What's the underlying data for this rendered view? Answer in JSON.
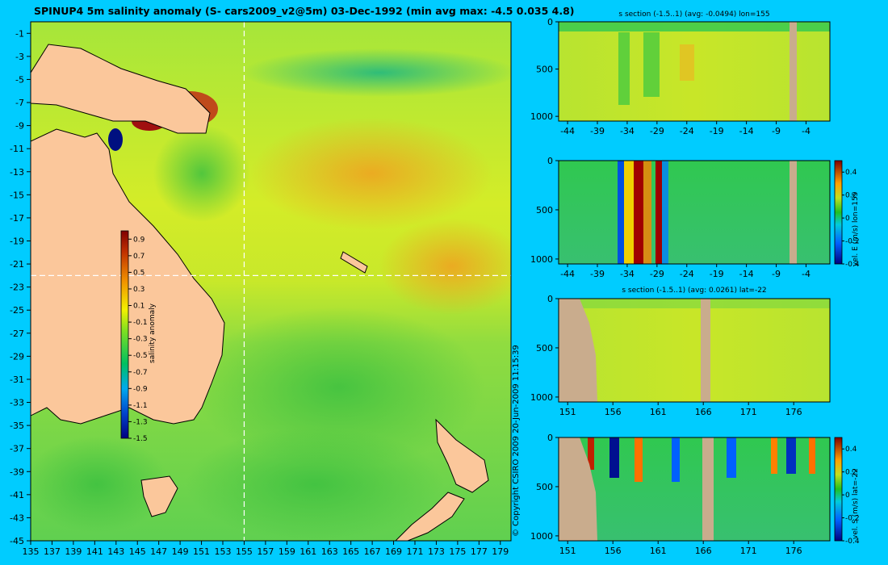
{
  "title": "SPINUP4 5m salinity anomaly  (S- cars2009_v2@5m) 03-Dec-1992 (min avg max: -4.5 0.035 4.8)",
  "copyright": "© Copyright CSIRO 2009   20-Jun-2009 11:15:39",
  "colors": {
    "background": "#00ccff",
    "land": "#fbc79b",
    "section_land": "#c9ac8d",
    "crosshair": "#ffffff"
  },
  "chart_data": [
    {
      "type": "heatmap",
      "id": "map",
      "title": "SPINUP4 5m salinity anomaly  (S- cars2009_v2@5m) 03-Dec-1992 (min avg max: -4.5 0.035 4.8)",
      "x_ticks": [
        "135",
        "137",
        "139",
        "141",
        "143",
        "145",
        "147",
        "149",
        "151",
        "153",
        "155",
        "157",
        "159",
        "161",
        "163",
        "165",
        "167",
        "169",
        "171",
        "173",
        "175",
        "177",
        "179"
      ],
      "y_ticks": [
        "-1",
        "-3",
        "-5",
        "-7",
        "-9",
        "-11",
        "-13",
        "-15",
        "-17",
        "-19",
        "-21",
        "-23",
        "-25",
        "-27",
        "-29",
        "-31",
        "-33",
        "-35",
        "-37",
        "-39",
        "-41",
        "-43",
        "-45"
      ],
      "xlim": [
        135,
        180
      ],
      "ylim": [
        -45,
        0
      ],
      "crosshair": {
        "lon": 155,
        "lat": -22
      },
      "colorbar": {
        "label": "salinity anomaly",
        "ticks": [
          "0.9",
          "0.7",
          "0.5",
          "0.3",
          "0.1",
          "-0.1",
          "-0.3",
          "-0.5",
          "-0.7",
          "-0.9",
          "-1.1",
          "-1.3",
          "-1.5"
        ],
        "range": [
          -1.5,
          1.0
        ]
      }
    },
    {
      "type": "heatmap",
      "id": "s_lon",
      "title": "s section (-1.5..1) (avg: -0.0494) lon=155",
      "x_ticks": [
        "-44",
        "-39",
        "-34",
        "-29",
        "-24",
        "-19",
        "-14",
        "-9",
        "-4"
      ],
      "xlim": [
        -45.5,
        0
      ],
      "y_ticks": [
        "0",
        "500",
        "1000"
      ],
      "ylim": [
        1050,
        0
      ]
    },
    {
      "type": "heatmap",
      "id": "e_lon",
      "title": "",
      "x_ticks": [
        "-44",
        "-39",
        "-34",
        "-29",
        "-24",
        "-19",
        "-14",
        "-9",
        "-4"
      ],
      "xlim": [
        -45.5,
        0
      ],
      "y_ticks": [
        "0",
        "500",
        "1000"
      ],
      "ylim": [
        1050,
        0
      ],
      "colorbar": {
        "label": "vel. E (m/s) lon=155",
        "ticks": [
          "0.4",
          "0.2",
          "0",
          "-0.2",
          "-0.4"
        ],
        "range": [
          -0.4,
          0.5
        ]
      }
    },
    {
      "type": "heatmap",
      "id": "s_lat",
      "title": "s section (-1.5..1) (avg: 0.0261) lat=-22",
      "x_ticks": [
        "151",
        "156",
        "161",
        "166",
        "171",
        "176"
      ],
      "xlim": [
        150,
        180
      ],
      "y_ticks": [
        "0",
        "500",
        "1000"
      ],
      "ylim": [
        1050,
        0
      ]
    },
    {
      "type": "heatmap",
      "id": "n_lat",
      "title": "",
      "x_ticks": [
        "151",
        "156",
        "161",
        "166",
        "171",
        "176"
      ],
      "xlim": [
        150,
        180
      ],
      "y_ticks": [
        "0",
        "500",
        "1000"
      ],
      "ylim": [
        1050,
        0
      ],
      "colorbar": {
        "label": "vel. S (m/s) lat=-22",
        "ticks": [
          "0.4",
          "0.2",
          "0",
          "-0.2",
          "-0.4"
        ],
        "range": [
          -0.4,
          0.5
        ]
      }
    }
  ]
}
